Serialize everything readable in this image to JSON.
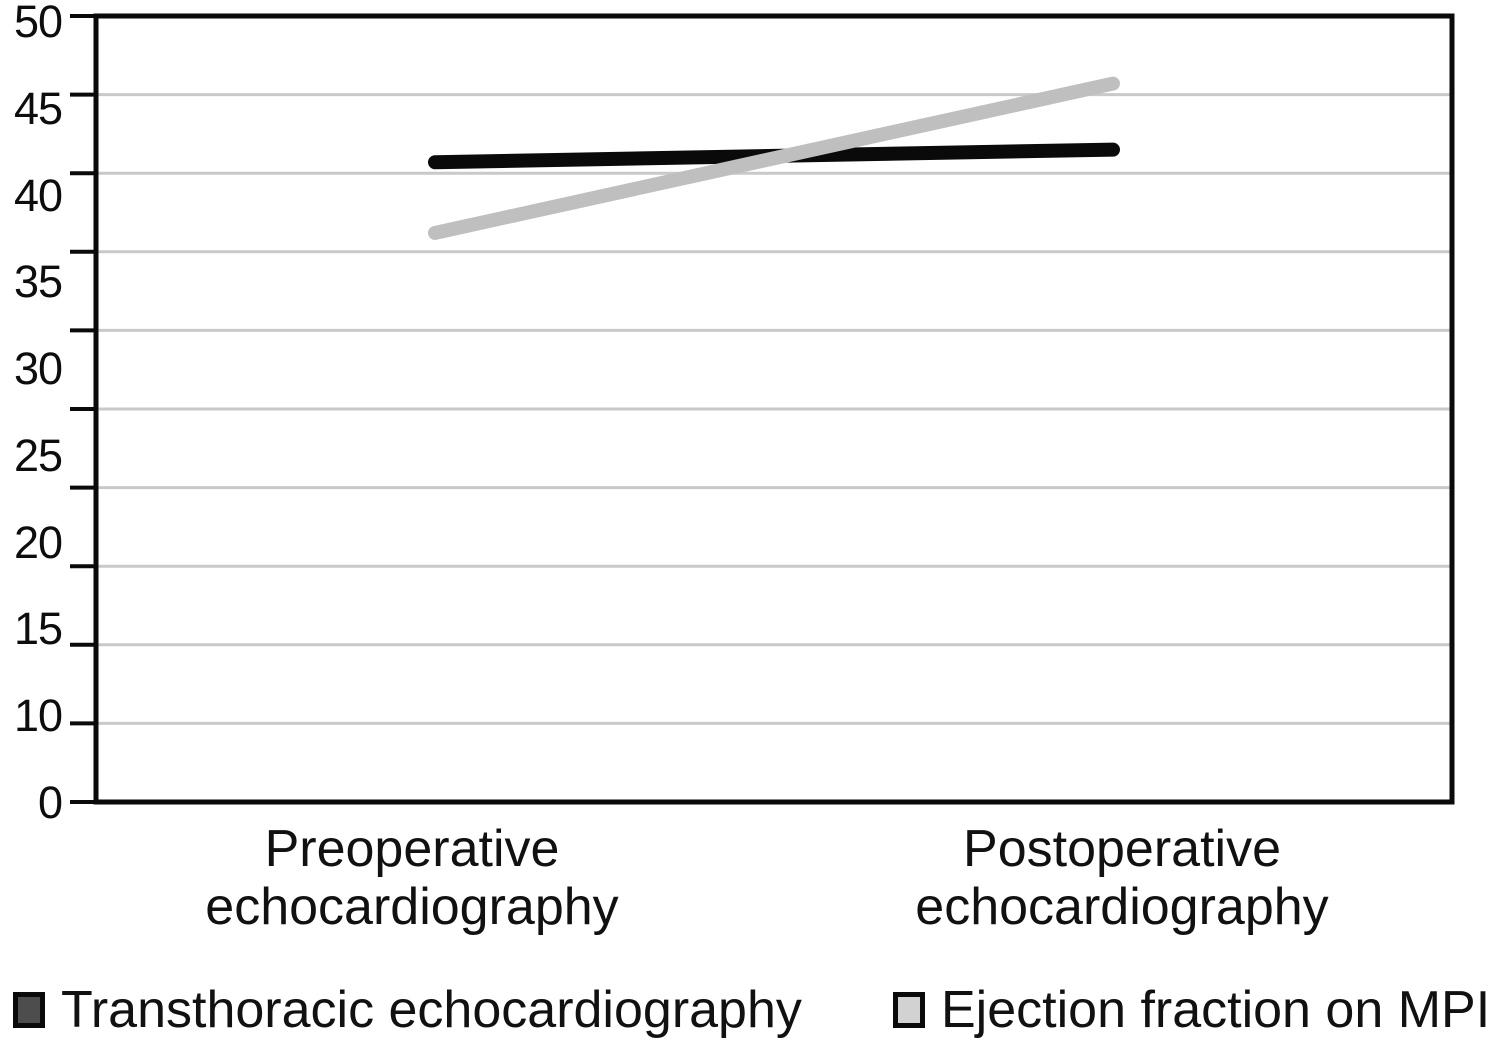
{
  "chart": {
    "type": "line",
    "title": "",
    "xlabel": "",
    "ylabel": "",
    "categories": [
      "Preoperative echocardiography",
      "Postoperative echocardiography"
    ],
    "series": [
      {
        "name": "Transthoracic echocardiography",
        "color": "#0a0a0a",
        "swatch_fill": "#4d4d4d",
        "values": [
          40.7,
          41.5
        ]
      },
      {
        "name": "Ejection fraction on MPI",
        "color": "#bfbfbf",
        "swatch_fill": "#d2d2d2",
        "values": [
          36.2,
          45.7
        ]
      }
    ],
    "ylim": [
      0,
      50
    ],
    "y_tick_step": 5,
    "y_tick_labels": [
      "50",
      "45",
      "40",
      "35",
      "30",
      "25",
      "20",
      "15",
      "10",
      "0"
    ],
    "grid": "horizontal",
    "legend_position": "bottom",
    "colors": {
      "axis": "#0a0a0a",
      "gridline": "#c9c9c9",
      "series_dark": "#0a0a0a",
      "series_light": "#bfbfbf",
      "background": "#ffffff"
    }
  }
}
